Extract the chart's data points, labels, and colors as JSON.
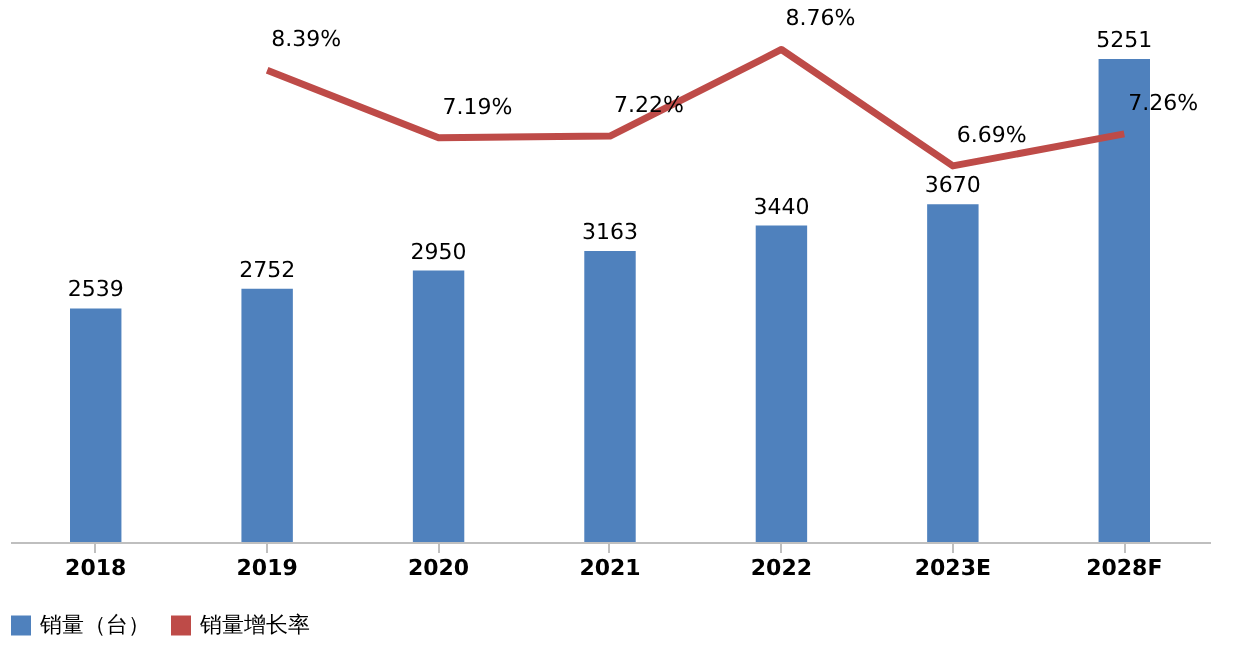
{
  "chart_data": {
    "type": "bar",
    "categories": [
      "2018",
      "2019",
      "2020",
      "2021",
      "2022",
      "2023E",
      "2028F"
    ],
    "series": [
      {
        "name": "销量（台）",
        "color": "#4f81bd",
        "values": [
          2539,
          2752,
          2950,
          3163,
          3440,
          3670,
          5251
        ]
      },
      {
        "name": "销量增长率",
        "type": "line",
        "axis": "y2",
        "color": "#be4b48",
        "values": [
          null,
          8.39,
          7.19,
          7.22,
          8.76,
          6.69,
          7.26
        ],
        "value_labels": [
          null,
          "8.39%",
          "7.19%",
          "7.22%",
          "8.76%",
          "6.69%",
          "7.26%"
        ]
      }
    ],
    "data_labels": true,
    "grid": false,
    "legend": "bottom",
    "tick_labels": "x",
    "line_style": "solid",
    "marker": "none"
  }
}
